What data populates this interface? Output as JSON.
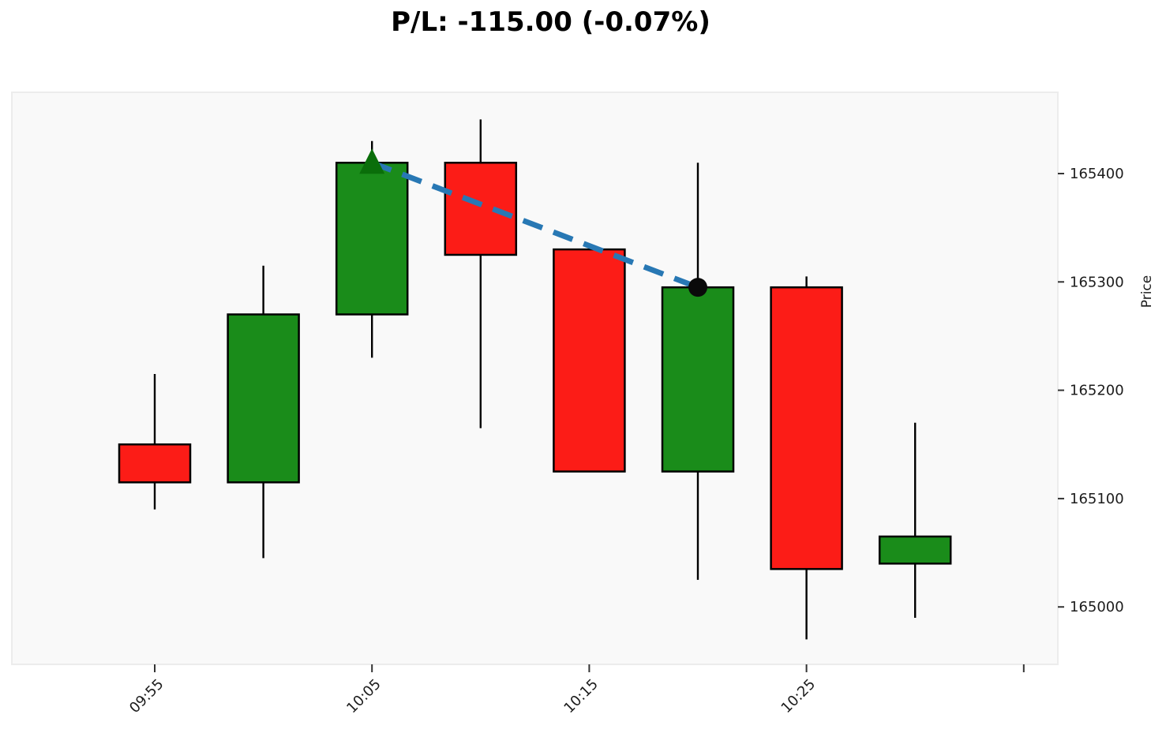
{
  "title": {
    "text": "P/L: -115.00 (-0.07%)"
  },
  "chart_data": {
    "type": "candlestick",
    "title": "P/L: -115.00 (-0.07%)",
    "xlabel": "",
    "ylabel": "Price",
    "ylabel_side": "right",
    "grid": false,
    "legend": false,
    "plot_bg_color": "#f9f9f9",
    "plot_border_color": "#ececec",
    "text_color": "#1c1c1c",
    "up_color": "#1a8c1a",
    "down_color": "#fc1c17",
    "wick_color": "#000000",
    "ylim": [
      164947,
      165475
    ],
    "y_ticks": [
      "165000",
      "165100",
      "165200",
      "165300",
      "165400"
    ],
    "x_ticks": [
      {
        "candle_index": 0,
        "label": "09:55"
      },
      {
        "candle_index": 2,
        "label": "10:05"
      },
      {
        "candle_index": 4,
        "label": "10:15"
      },
      {
        "candle_index": 6,
        "label": "10:25"
      },
      {
        "candle_index": 8,
        "label": ""
      }
    ],
    "candles": [
      {
        "time": "09:55",
        "open": 165150,
        "high": 165215,
        "low": 165090,
        "close": 165115,
        "direction": "down"
      },
      {
        "time": "10:00",
        "open": 165115,
        "high": 165315,
        "low": 165045,
        "close": 165270,
        "direction": "up"
      },
      {
        "time": "10:05",
        "open": 165270,
        "high": 165430,
        "low": 165230,
        "close": 165410,
        "direction": "up"
      },
      {
        "time": "10:10",
        "open": 165410,
        "high": 165450,
        "low": 165165,
        "close": 165325,
        "direction": "down"
      },
      {
        "time": "10:15",
        "open": 165330,
        "high": 165330,
        "low": 165125,
        "close": 165125,
        "direction": "down"
      },
      {
        "time": "10:20",
        "open": 165125,
        "high": 165410,
        "low": 165025,
        "close": 165295,
        "direction": "up"
      },
      {
        "time": "10:25",
        "open": 165295,
        "high": 165305,
        "low": 164970,
        "close": 165035,
        "direction": "down"
      },
      {
        "time": "10:30",
        "open": 165040,
        "high": 165170,
        "low": 164990,
        "close": 165065,
        "direction": "up"
      }
    ],
    "trade": {
      "pl_text": "P/L: -115.00 (-0.07%)",
      "entry": {
        "time": "10:05",
        "price": 165410,
        "marker": "triangle-up",
        "color": "#0a6e0a"
      },
      "exit": {
        "time": "10:20",
        "price": 165295,
        "marker": "circle",
        "color": "#0a0a0a"
      },
      "connector": {
        "style": "dashed",
        "color": "#2878b4"
      }
    }
  }
}
